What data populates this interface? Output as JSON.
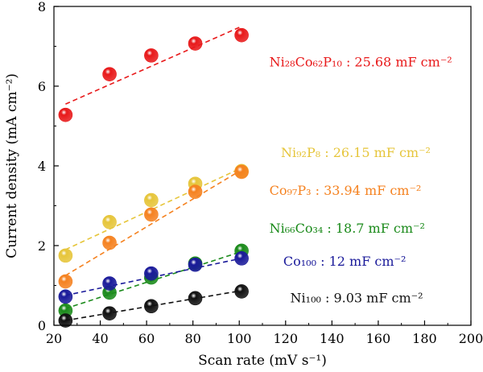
{
  "chart_data": {
    "type": "scatter",
    "xlabel": "Scan rate (mV s⁻¹)",
    "ylabel": "Current density (mA cm⁻²)",
    "xlim": [
      20,
      200
    ],
    "ylim": [
      0,
      8
    ],
    "xticks": [
      20,
      40,
      60,
      80,
      100,
      120,
      140,
      160,
      180,
      200
    ],
    "yticks": [
      0,
      2,
      4,
      6,
      8
    ],
    "grid": false,
    "legend": "none",
    "series": [
      {
        "name": "Ni28Co62P10",
        "label": "Ni₂₈Co₆₂P₁₀ : 25.68 mF cm⁻²",
        "color": "#e8191a",
        "x": [
          25,
          44,
          62,
          81,
          101
        ],
        "y": [
          5.28,
          6.3,
          6.77,
          7.07,
          7.28
        ],
        "fit": [
          [
            25,
            5.55
          ],
          [
            101,
            7.5
          ]
        ]
      },
      {
        "name": "Ni92P8",
        "label": "Ni₉₂P₈ : 26.15 mF cm⁻²",
        "color": "#e6c53a",
        "x": [
          25,
          44,
          62,
          81,
          101
        ],
        "y": [
          1.75,
          2.59,
          3.14,
          3.55,
          3.87
        ],
        "fit": [
          [
            25,
            1.9
          ],
          [
            101,
            3.95
          ]
        ]
      },
      {
        "name": "Co97P3",
        "label": "Co₉₇P₃ : 33.94 mF cm⁻²",
        "color": "#f58220",
        "x": [
          25,
          44,
          62,
          81,
          101
        ],
        "y": [
          1.1,
          2.07,
          2.78,
          3.35,
          3.85
        ],
        "fit": [
          [
            25,
            1.25
          ],
          [
            101,
            3.9
          ]
        ]
      },
      {
        "name": "Ni66Co34",
        "label": "Ni₆₆Co₃₄ : 18.7 mF cm⁻²",
        "color": "#1a8a1a",
        "x": [
          25,
          44,
          62,
          81,
          101
        ],
        "y": [
          0.37,
          0.82,
          1.2,
          1.55,
          1.87
        ],
        "fit": [
          [
            25,
            0.42
          ],
          [
            101,
            1.85
          ]
        ]
      },
      {
        "name": "Co100",
        "label": "Co₁₀₀ : 12 mF cm⁻²",
        "color": "#1a1a9a",
        "x": [
          25,
          44,
          62,
          81,
          101
        ],
        "y": [
          0.72,
          1.05,
          1.3,
          1.52,
          1.68
        ],
        "fit": [
          [
            25,
            0.75
          ],
          [
            101,
            1.68
          ]
        ]
      },
      {
        "name": "Ni100",
        "label": "Ni₁₀₀ : 9.03 mF cm⁻²",
        "color": "#111111",
        "x": [
          25,
          44,
          62,
          81,
          101
        ],
        "y": [
          0.12,
          0.3,
          0.48,
          0.68,
          0.85
        ],
        "fit": [
          [
            25,
            0.12
          ],
          [
            101,
            0.87
          ]
        ]
      }
    ]
  }
}
